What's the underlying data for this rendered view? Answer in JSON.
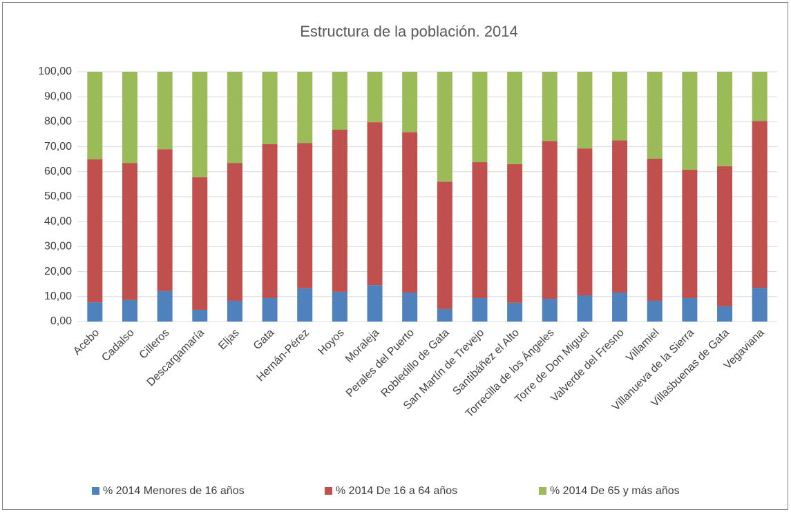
{
  "chart_data": {
    "type": "stacked_bar",
    "title": "Estructura de la población. 2014",
    "categories": [
      "Acebo",
      "Cadalso",
      "Cilleros",
      "Descargamaría",
      "Eljas",
      "Gata",
      "Hernán-Pérez",
      "Hoyos",
      "Moraleja",
      "Perales del Puerto",
      "Robledillo de Gata",
      "San Martín de Trevejo",
      "Santibáñez el Alto",
      "Torrecilla de los Ángeles",
      "Torre de Don Miguel",
      "Valverde del Fresno",
      "Villamiel",
      "Villanueva de la Sierra",
      "Villasbuenas de Gata",
      "Vegaviana"
    ],
    "series": [
      {
        "name": "% 2014 Menores de 16 años",
        "color": "#4f81bd",
        "values": [
          7.7,
          8.6,
          12.2,
          4.7,
          8.3,
          9.4,
          13.3,
          11.9,
          14.6,
          11.6,
          5.0,
          9.4,
          7.5,
          9.1,
          10.5,
          11.6,
          8.3,
          9.4,
          6.1,
          13.5
        ]
      },
      {
        "name": "% 2014 De 16 a 64 años",
        "color": "#c0504d",
        "values": [
          57.3,
          54.9,
          56.8,
          53.1,
          55.2,
          61.6,
          58.2,
          64.9,
          65.2,
          64.2,
          51.0,
          54.4,
          55.5,
          63.2,
          58.8,
          60.9,
          56.9,
          51.4,
          56.1,
          66.8
        ]
      },
      {
        "name": "% 2014 De 65 y más años",
        "color": "#9bbb59",
        "values": [
          35.0,
          36.5,
          31.0,
          42.2,
          36.5,
          29.0,
          28.5,
          23.2,
          20.2,
          24.2,
          44.0,
          36.2,
          37.0,
          27.7,
          30.7,
          27.5,
          34.8,
          39.2,
          37.8,
          19.7
        ]
      }
    ],
    "ylim": [
      0,
      100
    ],
    "yticks": [
      {
        "value": 0,
        "label": "0,00"
      },
      {
        "value": 10,
        "label": "10,00"
      },
      {
        "value": 20,
        "label": "20,00"
      },
      {
        "value": 30,
        "label": "30,00"
      },
      {
        "value": 40,
        "label": "40,00"
      },
      {
        "value": 50,
        "label": "50,00"
      },
      {
        "value": 60,
        "label": "60,00"
      },
      {
        "value": 70,
        "label": "70,00"
      },
      {
        "value": 80,
        "label": "80,00"
      },
      {
        "value": 90,
        "label": "90,00"
      },
      {
        "value": 100,
        "label": "100,00"
      }
    ],
    "grid": true,
    "legend": "bottom"
  }
}
